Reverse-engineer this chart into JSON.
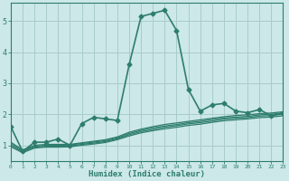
{
  "title": "",
  "xlabel": "Humidex (Indice chaleur)",
  "ylabel": "",
  "bg_color": "#cce8e8",
  "grid_color": "#aacccc",
  "line_color": "#2e7d6e",
  "x_min": 0,
  "x_max": 23,
  "y_min": 0.5,
  "y_max": 5.6,
  "yticks": [
    1,
    2,
    3,
    4,
    5
  ],
  "xticks": [
    0,
    1,
    2,
    3,
    4,
    5,
    6,
    7,
    8,
    9,
    10,
    11,
    12,
    13,
    14,
    15,
    16,
    17,
    18,
    19,
    20,
    21,
    22,
    23
  ],
  "series": [
    {
      "x": [
        0,
        1,
        2,
        3,
        4,
        5,
        6,
        7,
        8,
        9,
        10,
        11,
        12,
        13,
        14,
        15,
        16,
        17,
        18,
        19,
        20,
        21,
        22,
        23
      ],
      "y": [
        1.6,
        0.8,
        1.1,
        1.1,
        1.2,
        1.0,
        1.7,
        1.9,
        1.85,
        1.8,
        3.6,
        5.15,
        5.25,
        5.35,
        4.7,
        2.8,
        2.1,
        2.3,
        2.35,
        2.1,
        2.05,
        2.15,
        1.95,
        2.05
      ],
      "marker": "D",
      "ms": 2.5,
      "lw": 1.2,
      "ls": "-"
    },
    {
      "x": [
        0,
        1,
        2,
        3,
        4,
        5,
        6,
        7,
        8,
        9,
        10,
        11,
        12,
        13,
        14,
        15,
        16,
        17,
        18,
        19,
        20,
        21,
        22,
        23
      ],
      "y": [
        1.1,
        0.85,
        1.0,
        1.03,
        1.03,
        1.03,
        1.08,
        1.13,
        1.18,
        1.27,
        1.42,
        1.52,
        1.6,
        1.67,
        1.72,
        1.77,
        1.82,
        1.87,
        1.92,
        1.96,
        1.98,
        2.02,
        2.04,
        2.08
      ],
      "marker": null,
      "ms": 0,
      "lw": 0.9,
      "ls": "-"
    },
    {
      "x": [
        0,
        1,
        2,
        3,
        4,
        5,
        6,
        7,
        8,
        9,
        10,
        11,
        12,
        13,
        14,
        15,
        16,
        17,
        18,
        19,
        20,
        21,
        22,
        23
      ],
      "y": [
        1.05,
        0.82,
        0.97,
        1.0,
        1.0,
        1.01,
        1.06,
        1.1,
        1.15,
        1.24,
        1.38,
        1.48,
        1.56,
        1.62,
        1.67,
        1.73,
        1.77,
        1.83,
        1.88,
        1.91,
        1.93,
        1.98,
        2.0,
        2.04
      ],
      "marker": null,
      "ms": 0,
      "lw": 0.9,
      "ls": "-"
    },
    {
      "x": [
        0,
        1,
        2,
        3,
        4,
        5,
        6,
        7,
        8,
        9,
        10,
        11,
        12,
        13,
        14,
        15,
        16,
        17,
        18,
        19,
        20,
        21,
        22,
        23
      ],
      "y": [
        1.0,
        0.79,
        0.94,
        0.97,
        0.97,
        0.98,
        1.03,
        1.07,
        1.12,
        1.21,
        1.34,
        1.44,
        1.51,
        1.58,
        1.63,
        1.69,
        1.73,
        1.78,
        1.84,
        1.87,
        1.89,
        1.94,
        1.96,
        2.0
      ],
      "marker": null,
      "ms": 0,
      "lw": 0.9,
      "ls": "-"
    },
    {
      "x": [
        0,
        1,
        2,
        3,
        4,
        5,
        6,
        7,
        8,
        9,
        10,
        11,
        12,
        13,
        14,
        15,
        16,
        17,
        18,
        19,
        20,
        21,
        22,
        23
      ],
      "y": [
        0.95,
        0.76,
        0.91,
        0.94,
        0.94,
        0.95,
        1.0,
        1.04,
        1.09,
        1.18,
        1.3,
        1.4,
        1.47,
        1.53,
        1.58,
        1.64,
        1.68,
        1.74,
        1.79,
        1.82,
        1.85,
        1.89,
        1.91,
        1.95
      ],
      "marker": null,
      "ms": 0,
      "lw": 0.9,
      "ls": "-"
    }
  ]
}
